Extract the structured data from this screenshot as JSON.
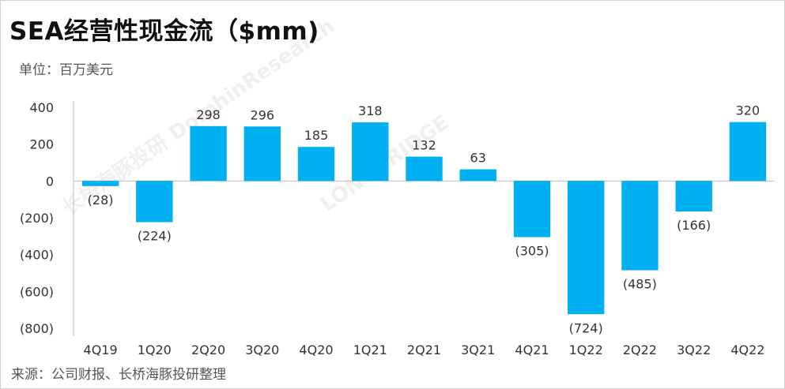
{
  "title": "SEA经营性现金流（$mm)",
  "unit_label": "单位：百万美元",
  "source_label": "来源：公司财报、长桥海豚投研整理",
  "watermark": [
    "长桥海豚投研",
    "LONGBRIDGE",
    "DolphinResearch"
  ],
  "colors": {
    "bar": "#00b0f0",
    "axis": "#bfbfbf",
    "text": "#333333"
  },
  "chart_data": {
    "type": "bar",
    "title": "SEA经营性现金流（$mm)",
    "xlabel": "",
    "ylabel": "",
    "categories": [
      "4Q19",
      "1Q20",
      "2Q20",
      "3Q20",
      "4Q20",
      "1Q21",
      "2Q21",
      "3Q21",
      "4Q21",
      "1Q22",
      "2Q22",
      "3Q22",
      "4Q22"
    ],
    "values": [
      -28,
      -224,
      298,
      296,
      185,
      318,
      132,
      63,
      -305,
      -724,
      -485,
      -166,
      320
    ],
    "data_labels": [
      "(28)",
      "(224)",
      "298",
      "296",
      "185",
      "318",
      "132",
      "63",
      "(305)",
      "(724)",
      "(485)",
      "(166)",
      "320"
    ],
    "ylim": [
      -800,
      400
    ],
    "yticks": [
      400,
      200,
      0,
      -200,
      -400,
      -600,
      -800
    ],
    "ytick_labels": [
      "400",
      "200",
      "0",
      "(200)",
      "(400)",
      "(600)",
      "(800)"
    ],
    "grid": false,
    "legend": "none"
  }
}
